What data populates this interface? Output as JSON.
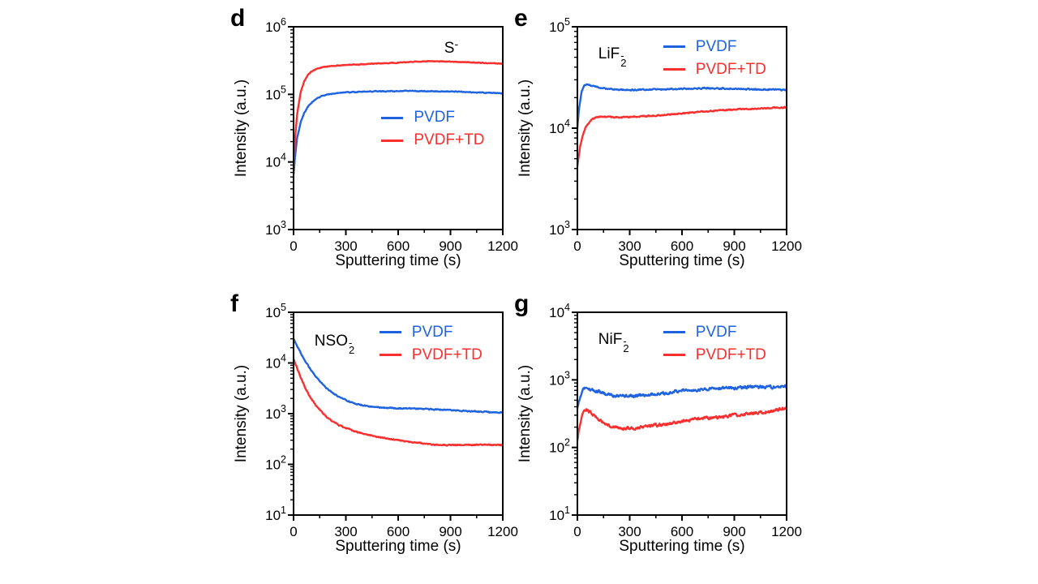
{
  "figure": {
    "background": "#ffffff",
    "axis_color": "#000000",
    "pvdf_color": "#1f63e0",
    "pvdf_td_color": "#fa2f2f"
  },
  "chart_data": [
    {
      "type": "line",
      "panel_label": "d",
      "annotation": {
        "base": "S",
        "sub": "",
        "sup": "-"
      },
      "xlabel": "Sputtering time (s)",
      "ylabel": "Intensity (a.u.)",
      "x_axis": {
        "min": 0,
        "max": 1200,
        "ticks": [
          0,
          300,
          600,
          900,
          1200
        ]
      },
      "y_axis": {
        "scale": "log",
        "exponent_min": 3,
        "exponent_max": 6
      },
      "legend": {
        "position": {
          "left_pct": 42,
          "top_pct": 40
        }
      },
      "annotation_pos": {
        "left_pct": 72,
        "top_pct": 5
      },
      "noise_amp": 0.005,
      "series": [
        {
          "name": "PVDF",
          "color": "#1f63e0",
          "points": [
            [
              0,
              6500
            ],
            [
              10,
              13000
            ],
            [
              20,
              22000
            ],
            [
              40,
              38000
            ],
            [
              60,
              52000
            ],
            [
              80,
              64000
            ],
            [
              100,
              74000
            ],
            [
              130,
              86000
            ],
            [
              160,
              94000
            ],
            [
              200,
              100000
            ],
            [
              250,
              105000
            ],
            [
              300,
              107000
            ],
            [
              400,
              110000
            ],
            [
              500,
              111000
            ],
            [
              600,
              112000
            ],
            [
              700,
              112000
            ],
            [
              800,
              111000
            ],
            [
              900,
              110000
            ],
            [
              1000,
              108000
            ],
            [
              1100,
              106000
            ],
            [
              1200,
              104000
            ]
          ]
        },
        {
          "name": "PVDF+TD",
          "color": "#fa2f2f",
          "points": [
            [
              0,
              7500
            ],
            [
              10,
              25000
            ],
            [
              20,
              50000
            ],
            [
              40,
              105000
            ],
            [
              60,
              155000
            ],
            [
              80,
              190000
            ],
            [
              100,
              215000
            ],
            [
              130,
              238000
            ],
            [
              160,
              250000
            ],
            [
              200,
              260000
            ],
            [
              250,
              267000
            ],
            [
              300,
              272000
            ],
            [
              400,
              280000
            ],
            [
              500,
              288000
            ],
            [
              600,
              295000
            ],
            [
              700,
              305000
            ],
            [
              800,
              308000
            ],
            [
              900,
              305000
            ],
            [
              1000,
              298000
            ],
            [
              1100,
              290000
            ],
            [
              1200,
              285000
            ]
          ]
        }
      ]
    },
    {
      "type": "line",
      "panel_label": "e",
      "annotation": {
        "base": "LiF",
        "sub": "2",
        "sup": "-"
      },
      "xlabel": "Sputtering time (s)",
      "ylabel": "Intensity (a.u.)",
      "x_axis": {
        "min": 0,
        "max": 1200,
        "ticks": [
          0,
          300,
          600,
          900,
          1200
        ]
      },
      "y_axis": {
        "scale": "log",
        "exponent_min": 3,
        "exponent_max": 5
      },
      "legend": {
        "position": {
          "left_pct": 41,
          "top_pct": 5
        }
      },
      "annotation_pos": {
        "left_pct": 10,
        "top_pct": 9
      },
      "noise_amp": 0.005,
      "series": [
        {
          "name": "PVDF",
          "color": "#1f63e0",
          "points": [
            [
              0,
              10000
            ],
            [
              10,
              16000
            ],
            [
              25,
              23000
            ],
            [
              40,
              26500
            ],
            [
              60,
              27000
            ],
            [
              90,
              26000
            ],
            [
              130,
              25000
            ],
            [
              200,
              24200
            ],
            [
              300,
              23800
            ],
            [
              400,
              24000
            ],
            [
              500,
              24200
            ],
            [
              600,
              24500
            ],
            [
              700,
              24800
            ],
            [
              800,
              24700
            ],
            [
              900,
              24500
            ],
            [
              1000,
              24200
            ],
            [
              1100,
              24000
            ],
            [
              1200,
              23800
            ]
          ]
        },
        {
          "name": "PVDF+TD",
          "color": "#fa2f2f",
          "points": [
            [
              0,
              4200
            ],
            [
              15,
              6500
            ],
            [
              30,
              8500
            ],
            [
              50,
              10500
            ],
            [
              80,
              12000
            ],
            [
              110,
              12800
            ],
            [
              150,
              13000
            ],
            [
              250,
              12800
            ],
            [
              350,
              13000
            ],
            [
              450,
              13300
            ],
            [
              550,
              13800
            ],
            [
              650,
              14200
            ],
            [
              750,
              14700
            ],
            [
              850,
              15100
            ],
            [
              950,
              15400
            ],
            [
              1050,
              15700
            ],
            [
              1200,
              16000
            ]
          ]
        }
      ]
    },
    {
      "type": "line",
      "panel_label": "f",
      "annotation": {
        "base": "NSO",
        "sub": "2",
        "sup": "-"
      },
      "xlabel": "Sputtering time (s)",
      "ylabel": "Intensity (a.u.)",
      "x_axis": {
        "min": 0,
        "max": 1200,
        "ticks": [
          0,
          300,
          600,
          900,
          1200
        ]
      },
      "y_axis": {
        "scale": "log",
        "exponent_min": 1,
        "exponent_max": 5
      },
      "legend": {
        "position": {
          "left_pct": 41,
          "top_pct": 5
        }
      },
      "annotation_pos": {
        "left_pct": 10,
        "top_pct": 10
      },
      "noise_amp": 0.009,
      "series": [
        {
          "name": "PVDF",
          "color": "#1f63e0",
          "points": [
            [
              0,
              30000
            ],
            [
              20,
              22000
            ],
            [
              40,
              16000
            ],
            [
              70,
              10500
            ],
            [
              100,
              7200
            ],
            [
              140,
              4800
            ],
            [
              180,
              3400
            ],
            [
              220,
              2600
            ],
            [
              260,
              2150
            ],
            [
              300,
              1850
            ],
            [
              350,
              1600
            ],
            [
              400,
              1450
            ],
            [
              450,
              1380
            ],
            [
              500,
              1320
            ],
            [
              600,
              1280
            ],
            [
              700,
              1250
            ],
            [
              800,
              1220
            ],
            [
              900,
              1180
            ],
            [
              1000,
              1120
            ],
            [
              1100,
              1080
            ],
            [
              1200,
              1050
            ]
          ]
        },
        {
          "name": "PVDF+TD",
          "color": "#fa2f2f",
          "points": [
            [
              0,
              12000
            ],
            [
              20,
              8000
            ],
            [
              40,
              5200
            ],
            [
              70,
              3100
            ],
            [
              100,
              2000
            ],
            [
              140,
              1300
            ],
            [
              180,
              920
            ],
            [
              220,
              720
            ],
            [
              260,
              600
            ],
            [
              300,
              520
            ],
            [
              350,
              450
            ],
            [
              400,
              400
            ],
            [
              450,
              370
            ],
            [
              500,
              340
            ],
            [
              600,
              300
            ],
            [
              700,
              270
            ],
            [
              800,
              245
            ],
            [
              900,
              240
            ],
            [
              1000,
              240
            ],
            [
              1100,
              245
            ],
            [
              1200,
              240
            ]
          ]
        }
      ]
    },
    {
      "type": "line",
      "panel_label": "g",
      "annotation": {
        "base": "NiF",
        "sub": "2",
        "sup": "-"
      },
      "xlabel": "Sputtering time (s)",
      "ylabel": "Intensity (a.u.)",
      "x_axis": {
        "min": 0,
        "max": 1200,
        "ticks": [
          0,
          300,
          600,
          900,
          1200
        ]
      },
      "y_axis": {
        "scale": "log",
        "exponent_min": 1,
        "exponent_max": 4
      },
      "legend": {
        "position": {
          "left_pct": 41,
          "top_pct": 5
        }
      },
      "annotation_pos": {
        "left_pct": 10,
        "top_pct": 9
      },
      "noise_amp": 0.018,
      "series": [
        {
          "name": "PVDF",
          "color": "#1f63e0",
          "points": [
            [
              0,
              380
            ],
            [
              15,
              550
            ],
            [
              30,
              690
            ],
            [
              45,
              760
            ],
            [
              60,
              750
            ],
            [
              80,
              720
            ],
            [
              100,
              700
            ],
            [
              130,
              660
            ],
            [
              160,
              620
            ],
            [
              200,
              590
            ],
            [
              250,
              570
            ],
            [
              300,
              580
            ],
            [
              400,
              600
            ],
            [
              500,
              640
            ],
            [
              600,
              690
            ],
            [
              700,
              720
            ],
            [
              800,
              740
            ],
            [
              900,
              760
            ],
            [
              1000,
              790
            ],
            [
              1100,
              780
            ],
            [
              1200,
              800
            ]
          ]
        },
        {
          "name": "PVDF+TD",
          "color": "#fa2f2f",
          "points": [
            [
              0,
              125
            ],
            [
              15,
              220
            ],
            [
              30,
              320
            ],
            [
              45,
              370
            ],
            [
              60,
              360
            ],
            [
              80,
              320
            ],
            [
              100,
              290
            ],
            [
              130,
              250
            ],
            [
              160,
              220
            ],
            [
              200,
              200
            ],
            [
              250,
              190
            ],
            [
              300,
              190
            ],
            [
              400,
              205
            ],
            [
              500,
              220
            ],
            [
              600,
              240
            ],
            [
              700,
              265
            ],
            [
              800,
              280
            ],
            [
              900,
              300
            ],
            [
              1000,
              320
            ],
            [
              1100,
              340
            ],
            [
              1200,
              380
            ]
          ]
        }
      ]
    }
  ]
}
